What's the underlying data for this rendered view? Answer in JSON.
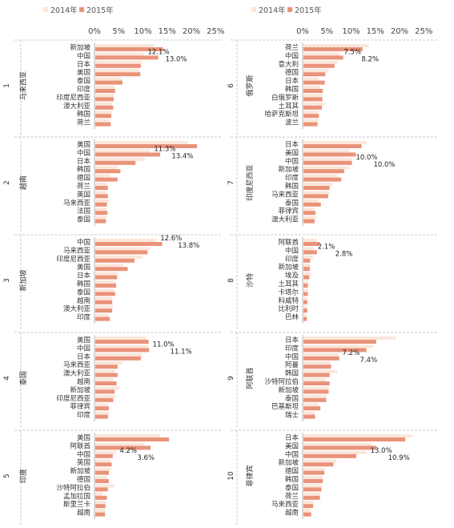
{
  "colors": {
    "y2014": "#fbe6da",
    "y2015": "#e9937a",
    "sep": "#c8c8c8",
    "axis": "#b5b5b5"
  },
  "chart_data": {
    "type": "bar",
    "orientation": "horizontal",
    "layout": "small-multiples, 2 columns x 5 rows",
    "legend": {
      "position": "top",
      "items": [
        "2014年",
        "2015年"
      ]
    },
    "x_axis": {
      "min": 0,
      "max": 25,
      "unit": "%",
      "ticks": [
        "0%",
        "5%",
        "10%",
        "15%",
        "20%",
        "25%"
      ],
      "position": "top"
    },
    "grid": false,
    "panels": [
      {
        "number": "1",
        "country": "马来西亚",
        "categories": [
          "新加坡",
          "中国",
          "日本",
          "美国",
          "泰国",
          "印度",
          "印度尼西亚",
          "澳大利亚",
          "韩国",
          "荷兰"
        ],
        "y2014": [
          12.1,
          10.0,
          9.5,
          9.0,
          5.4,
          4.0,
          3.9,
          3.5,
          3.4,
          3.0
        ],
        "y2015": [
          14.0,
          13.0,
          9.4,
          9.3,
          5.6,
          4.1,
          3.8,
          3.7,
          3.3,
          3.2
        ],
        "labels": [
          "12.1%",
          "13.0%"
        ]
      },
      {
        "number": "2",
        "country": "越南",
        "categories": [
          "美国",
          "中国",
          "日本",
          "韩国",
          "德国",
          "荷兰",
          "英国",
          "马来西亚",
          "法国",
          "泰国"
        ],
        "y2014": [
          19.1,
          11.3,
          10.2,
          4.7,
          3.2,
          2.5,
          2.4,
          2.9,
          2.3,
          2.3
        ],
        "y2015": [
          21.0,
          13.4,
          8.3,
          5.2,
          4.6,
          2.6,
          2.6,
          2.4,
          2.5,
          2.2
        ],
        "labels": [
          "11.3%",
          "13.4%"
        ]
      },
      {
        "number": "3",
        "country": "新加坡",
        "categories": [
          "中国",
          "马来西亚",
          "印度尼西亚",
          "美国",
          "日本",
          "韩国",
          "泰国",
          "越南",
          "澳大利亚",
          "印度"
        ],
        "y2014": [
          12.6,
          11.3,
          9.7,
          5.8,
          4.6,
          4.2,
          3.9,
          3.5,
          3.7,
          2.7
        ],
        "y2015": [
          13.8,
          10.8,
          8.1,
          6.7,
          4.5,
          4.3,
          4.1,
          3.5,
          3.5,
          3.0
        ],
        "labels": [
          "12.6%",
          "13.8%"
        ]
      },
      {
        "number": "4",
        "country": "泰国",
        "categories": [
          "美国",
          "中国",
          "日本",
          "马来西亚",
          "澳大利亚",
          "越南",
          "新加坡",
          "印度尼西亚",
          "菲律宾",
          "印度"
        ],
        "y2014": [
          10.5,
          11.0,
          9.7,
          5.6,
          4.1,
          3.8,
          5.0,
          4.2,
          2.6,
          2.8
        ],
        "y2015": [
          11.0,
          11.1,
          9.4,
          4.6,
          4.6,
          4.4,
          4.0,
          3.7,
          2.8,
          2.6
        ],
        "labels": [
          "11.0%",
          "11.1%"
        ]
      },
      {
        "number": "5",
        "country": "印度",
        "categories": [
          "美国",
          "阿联酋",
          "中国",
          "英国",
          "新加坡",
          "德国",
          "沙特阿拉伯",
          "孟加拉国",
          "斯里兰卡",
          "越南"
        ],
        "y2014": [
          13.3,
          10.1,
          4.2,
          3.1,
          3.2,
          2.4,
          4.0,
          1.5,
          2.2,
          2.1
        ],
        "y2015": [
          15.2,
          11.4,
          3.6,
          3.4,
          2.8,
          2.8,
          2.6,
          2.4,
          2.1,
          2.0
        ],
        "labels": [
          "4.2%",
          "3.6%"
        ]
      },
      {
        "number": "6",
        "country": "俄罗斯",
        "categories": [
          "荷兰",
          "中国",
          "意大利",
          "德国",
          "日本",
          "韩国",
          "白俄罗斯",
          "土耳其",
          "哈萨克斯坦",
          "波兰"
        ],
        "y2014": [
          13.5,
          7.5,
          7.1,
          5.2,
          3.2,
          3.5,
          3.9,
          4.4,
          3.1,
          3.1
        ],
        "y2015": [
          12.2,
          8.2,
          6.4,
          4.5,
          4.4,
          4.0,
          3.9,
          3.8,
          3.2,
          2.9
        ],
        "labels": [
          "7.5%",
          "8.2%"
        ]
      },
      {
        "number": "7",
        "country": "印度尼西亚",
        "categories": [
          "日本",
          "美国",
          "中国",
          "新加坡",
          "印度",
          "韩国",
          "马来西亚",
          "泰国",
          "菲律宾",
          "澳大利亚"
        ],
        "y2014": [
          13.0,
          9.4,
          10.0,
          9.5,
          7.0,
          6.0,
          5.3,
          3.1,
          2.2,
          2.6
        ],
        "y2015": [
          12.0,
          10.8,
          10.0,
          8.4,
          7.8,
          5.4,
          5.1,
          3.6,
          2.5,
          2.3
        ],
        "labels": [
          "10.0%",
          "10.0%"
        ]
      },
      {
        "number": "8",
        "country": "沙特",
        "categories": [
          "阿联酋",
          "中国",
          "印度",
          "新加坡",
          "埃及",
          "土耳其",
          "卡塔尔",
          "科威特",
          "比利时",
          "巴林"
        ],
        "y2014": [
          2.7,
          2.1,
          2.0,
          1.4,
          1.5,
          1.0,
          0.9,
          0.8,
          0.7,
          0.6
        ],
        "y2015": [
          3.3,
          2.8,
          1.4,
          1.3,
          1.2,
          0.9,
          0.9,
          0.8,
          0.8,
          0.7
        ],
        "labels": [
          "2.1%",
          "2.8%"
        ]
      },
      {
        "number": "9",
        "country": "阿联酋",
        "categories": [
          "日本",
          "印度",
          "中国",
          "阿曼",
          "韩国",
          "沙特阿拉伯",
          "新加坡",
          "泰国",
          "巴基斯坦",
          "瑞士"
        ],
        "y2014": [
          19.1,
          14.4,
          7.2,
          5.6,
          7.0,
          4.5,
          5.2,
          4.7,
          3.1,
          2.3
        ],
        "y2015": [
          15.0,
          13.0,
          7.4,
          5.7,
          5.4,
          5.4,
          5.2,
          4.7,
          3.5,
          2.4
        ],
        "labels": [
          "7.2%",
          "7.4%"
        ]
      },
      {
        "number": "10",
        "country": "菲律宾",
        "categories": [
          "日本",
          "美国",
          "中国",
          "新加坡",
          "德国",
          "韩国",
          "泰国",
          "荷兰",
          "马来西亚",
          "越南"
        ],
        "y2014": [
          22.5,
          14.0,
          13.0,
          6.8,
          4.4,
          4.0,
          3.8,
          3.5,
          2.1,
          1.6
        ],
        "y2015": [
          21.0,
          15.0,
          10.9,
          6.2,
          4.3,
          4.0,
          3.7,
          3.4,
          2.0,
          1.6
        ],
        "labels": [
          "13.0%",
          "10.9%"
        ]
      }
    ]
  }
}
